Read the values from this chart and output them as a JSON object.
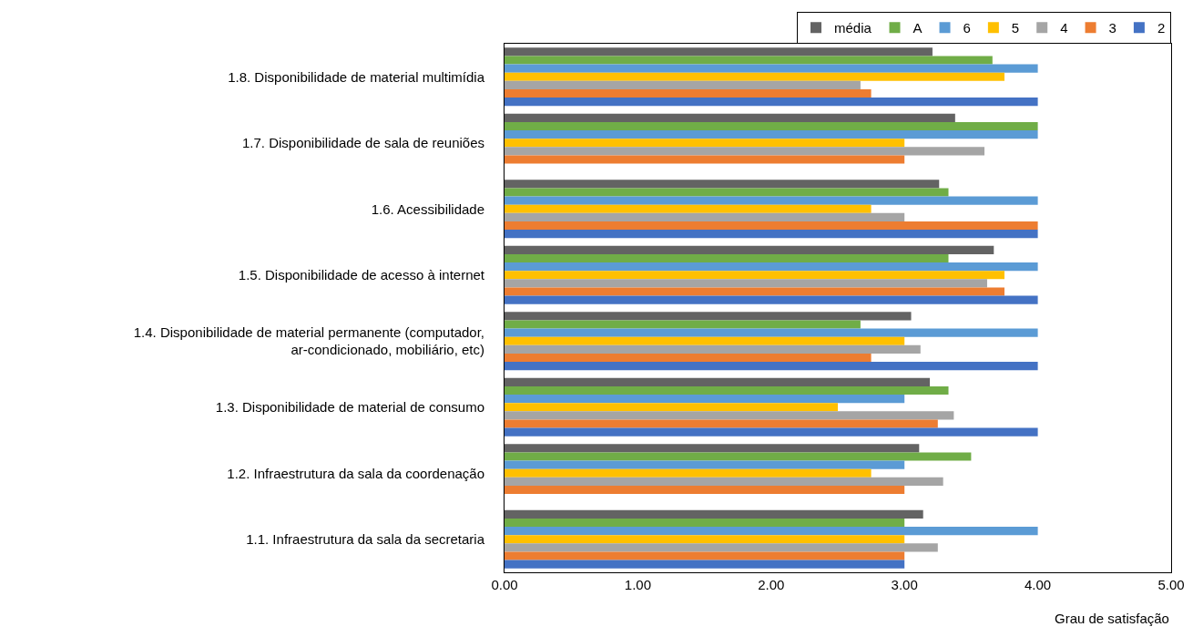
{
  "chart_data": {
    "type": "bar",
    "orientation": "horizontal",
    "xlabel": "Grau de satisfação",
    "categories": [
      "1.8. Disponibilidade de material multimídia",
      "1.7. Disponibilidade de sala de reuniões",
      "1.6. Acessibilidade",
      "1.5. Disponibilidade de acesso à internet",
      "1.4. Disponibilidade de material permanente (computador,\nar-condicionado, mobiliário, etc)",
      "1.3. Disponibilidade de material de consumo",
      "1.2. Infraestrutura da sala da coordenação",
      "1.1. Infraestrutura da sala da secretaria"
    ],
    "series": [
      {
        "name": "média",
        "color": "#636363",
        "values": [
          3.21,
          3.38,
          3.26,
          3.67,
          3.05,
          3.19,
          3.11,
          3.14
        ]
      },
      {
        "name": "A",
        "color": "#70ad47",
        "values": [
          3.66,
          4.0,
          3.33,
          3.33,
          2.67,
          3.33,
          3.5,
          3.0
        ]
      },
      {
        "name": "6",
        "color": "#5b9bd5",
        "values": [
          4.0,
          4.0,
          4.0,
          4.0,
          4.0,
          3.0,
          3.0,
          4.0
        ]
      },
      {
        "name": "5",
        "color": "#ffc000",
        "values": [
          3.75,
          3.0,
          2.75,
          3.75,
          3.0,
          2.5,
          2.75,
          3.0
        ]
      },
      {
        "name": "4",
        "color": "#a5a5a5",
        "values": [
          2.67,
          3.6,
          3.0,
          3.62,
          3.12,
          3.37,
          3.29,
          3.25
        ]
      },
      {
        "name": "3",
        "color": "#ed7d31",
        "values": [
          2.75,
          3.0,
          4.0,
          3.75,
          2.75,
          3.25,
          3.0,
          3.0
        ]
      },
      {
        "name": "2",
        "color": "#4472c4",
        "values": [
          4.0,
          null,
          4.0,
          4.0,
          4.0,
          4.0,
          null,
          3.0
        ]
      }
    ],
    "xlim": [
      0,
      5
    ],
    "xticks": [
      {
        "value": 0,
        "label": "0.00"
      },
      {
        "value": 1,
        "label": "1.00"
      },
      {
        "value": 2,
        "label": "2.00"
      },
      {
        "value": 3,
        "label": "3.00"
      },
      {
        "value": 4,
        "label": "4.00"
      },
      {
        "value": 5,
        "label": "5.00"
      }
    ],
    "grid": false,
    "legend": "top right"
  }
}
